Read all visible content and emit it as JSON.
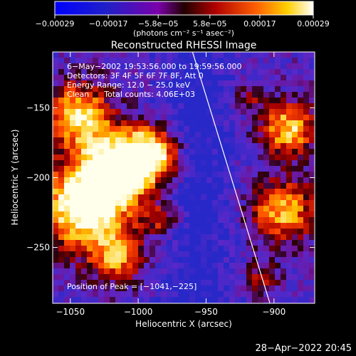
{
  "chart_data": {
    "type": "heatmap",
    "title": "Reconstructed RHESSI Image",
    "xlabel": "Heliocentric X (arcsec)",
    "ylabel": "Heliocentric Y (arcsec)",
    "xlim": [
      -1063,
      -870
    ],
    "ylim": [
      -290,
      -110
    ],
    "x_ticks": [
      -1050,
      -1000,
      -950,
      -900
    ],
    "x_tick_labels": [
      "−1050",
      "−1000",
      "−950",
      "−900"
    ],
    "y_ticks": [
      -150,
      -200,
      -250
    ],
    "y_tick_labels": [
      "−150",
      "−200",
      "−250"
    ],
    "colorbar": {
      "min": -0.00029,
      "max": 0.00029,
      "ticks": [
        -0.00029,
        -0.00017,
        -5.8e-05,
        5.8e-05,
        0.00017,
        0.00029
      ],
      "tick_labels": [
        "−0.00029",
        "−0.00017",
        "−5.8e−05",
        "5.8e−05",
        "0.00017",
        "0.00029"
      ],
      "unit_label": "(photons cm⁻² s⁻¹ asec⁻²)"
    },
    "info_lines": [
      "6−May−2002 19:53:56.000 to 19:59:56.000",
      "Detectors: 3F 4F 5F 6F 7F 8F, Att 0",
      "Energy Range: 12.0 − 25.0 keV",
      "Clean      Total counts: 4.06E+03"
    ],
    "peak_label": "Position of Peak = [−1041,−225]",
    "peak": {
      "x": -1041,
      "y": -225
    },
    "limb_line": [
      [
        -960,
        -110
      ],
      [
        -903,
        -290
      ]
    ],
    "colors": {
      "background": "#000000",
      "text": "#ffffff"
    }
  },
  "footer": {
    "timestamp": "28−Apr−2022 20:45"
  }
}
